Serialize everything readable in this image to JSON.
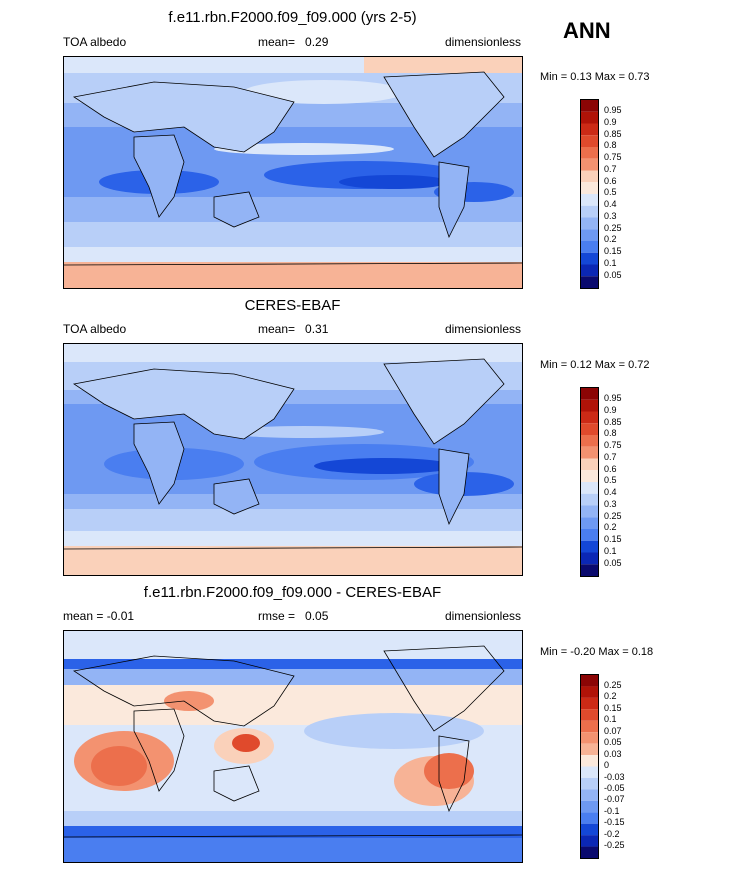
{
  "season": "ANN",
  "palette": {
    "p19": [
      "#0a0a6e",
      "#0b27b4",
      "#1447d6",
      "#2b62e8",
      "#4a7ef0",
      "#6e99f2",
      "#93b4f5",
      "#b8cff8",
      "#dbe7fa",
      "#fbe9dc",
      "#fad1ba",
      "#f7b396",
      "#f39270",
      "#ec6f4c",
      "#e04a2c",
      "#cc2a16",
      "#b01308",
      "#8b0505",
      "#6a0202"
    ],
    "p19_diff": [
      "#0a0a6e",
      "#0b27b4",
      "#1447d6",
      "#2b62e8",
      "#4a7ef0",
      "#6e99f2",
      "#93b4f5",
      "#b8cff8",
      "#dbe7fa",
      "#ffffff",
      "#fbe9dc",
      "#fad1ba",
      "#f7b396",
      "#f39270",
      "#ec6f4c",
      "#e04a2c",
      "#cc2a16",
      "#b01308",
      "#6a0202"
    ]
  },
  "panels": [
    {
      "id": "model",
      "title": "f.e11.rbn.F2000.f09_f09.000 (yrs 2-5)",
      "left": "TOA albedo",
      "center_label": "mean=",
      "center_value": "0.29",
      "right": "dimensionless",
      "min_label": "Min =",
      "min_value": "0.13",
      "max_label": "Max =",
      "max_value": "0.73",
      "levels": [
        "0.95",
        "0.9",
        "0.85",
        "0.8",
        "0.75",
        "0.7",
        "0.6",
        "0.5",
        "0.4",
        "0.3",
        "0.25",
        "0.2",
        "0.15",
        "0.1",
        "0.05"
      ]
    },
    {
      "id": "obs",
      "title": "CERES-EBAF",
      "left": "TOA albedo",
      "center_label": "mean=",
      "center_value": "0.31",
      "right": "dimensionless",
      "min_label": "Min =",
      "min_value": "0.12",
      "max_label": "Max =",
      "max_value": "0.72",
      "levels": [
        "0.95",
        "0.9",
        "0.85",
        "0.8",
        "0.75",
        "0.7",
        "0.6",
        "0.5",
        "0.4",
        "0.3",
        "0.25",
        "0.2",
        "0.15",
        "0.1",
        "0.05"
      ]
    },
    {
      "id": "diff",
      "title": "f.e11.rbn.F2000.f09_f09.000 - CERES-EBAF",
      "left": "mean =  -0.01",
      "center_label": "rmse =",
      "center_value": "0.05",
      "right": "dimensionless",
      "min_label": "Min =",
      "min_value": "-0.20",
      "max_label": "Max =",
      "max_value": "0.18",
      "levels": [
        "0.25",
        "0.2",
        "0.15",
        "0.1",
        "0.07",
        "0.05",
        "0.03",
        "0",
        "-0.03",
        "-0.05",
        "-0.07",
        "-0.1",
        "-0.15",
        "-0.2",
        "-0.25"
      ]
    }
  ]
}
